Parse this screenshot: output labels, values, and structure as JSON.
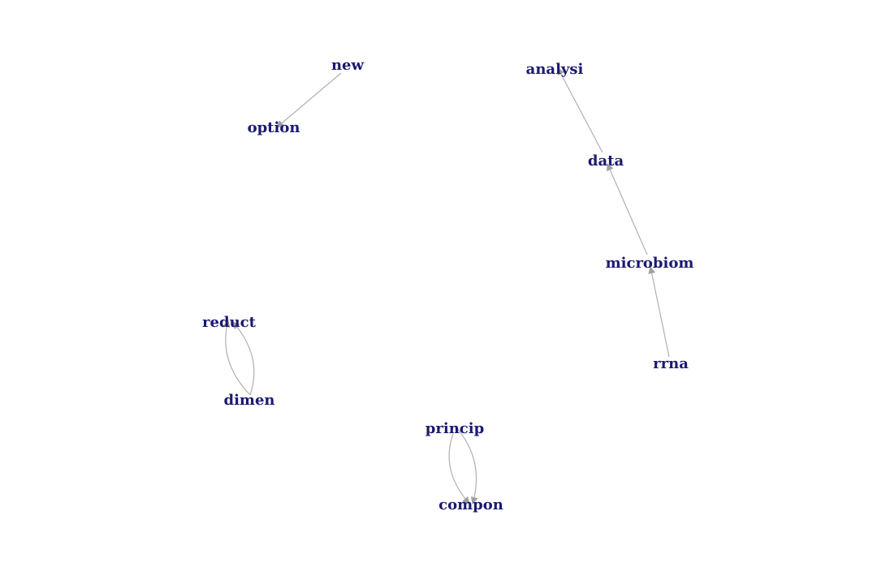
{
  "colors": {
    "label": "#1a1a70",
    "edge": "#b0b0b0",
    "arrow": "#a0a0a0",
    "background": "#ffffff"
  },
  "nodes": [
    {
      "id": "new",
      "label": "new"
    },
    {
      "id": "option",
      "label": "option"
    },
    {
      "id": "analysi",
      "label": "analysi"
    },
    {
      "id": "data",
      "label": "data"
    },
    {
      "id": "microbiom",
      "label": "microbiom"
    },
    {
      "id": "rrna",
      "label": "rrna"
    },
    {
      "id": "reduct",
      "label": "reduct"
    },
    {
      "id": "dimen",
      "label": "dimen"
    },
    {
      "id": "princip",
      "label": "princip"
    },
    {
      "id": "compon",
      "label": "compon"
    }
  ],
  "edges": [
    {
      "from": "new",
      "to": "option",
      "directed": true
    },
    {
      "from": "data",
      "to": "analysi",
      "directed": true
    },
    {
      "from": "microbiom",
      "to": "data",
      "directed": true
    },
    {
      "from": "rrna",
      "to": "microbiom",
      "directed": true
    },
    {
      "from": "dimen",
      "to": "reduct",
      "directed": true
    },
    {
      "from": "dimen",
      "to": "reduct",
      "directed": true
    },
    {
      "from": "princip",
      "to": "compon",
      "directed": true
    },
    {
      "from": "princip",
      "to": "compon",
      "directed": true
    }
  ]
}
